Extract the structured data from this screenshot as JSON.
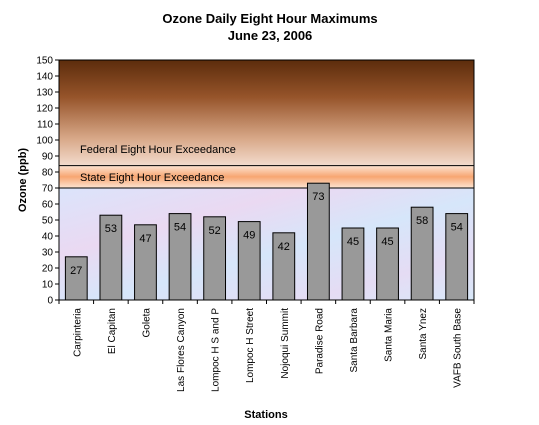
{
  "chart_data": {
    "type": "bar",
    "title": "Ozone Daily Eight Hour Maximums",
    "subtitle": "June 23, 2006",
    "xlabel": "Stations",
    "ylabel": "Ozone  (ppb)",
    "ylim": [
      0,
      150
    ],
    "yticks": [
      0,
      10,
      20,
      30,
      40,
      50,
      60,
      70,
      80,
      90,
      100,
      110,
      120,
      130,
      140,
      150
    ],
    "categories": [
      "Carpinteria",
      "El Capitan",
      "Goleta",
      "Las Flores Canyon",
      "Lompoc H S and P",
      "Lompoc H Street",
      "Nojoqui Summit",
      "Paradise Road",
      "Santa Barbara",
      "Santa Maria",
      "Santa Ynez",
      "VAFB South Base"
    ],
    "values": [
      27,
      53,
      47,
      54,
      52,
      49,
      42,
      73,
      45,
      45,
      58,
      54
    ],
    "data_labels": [
      "27",
      "53",
      "47",
      "54",
      "52",
      "49",
      "42",
      "73",
      "45",
      "45",
      "58",
      "54"
    ],
    "thresholds": [
      {
        "label": "State Eight Hour Exceedance",
        "from": 70,
        "to": 84
      },
      {
        "label": "Federal Eight Hour Exceedance",
        "from": 84,
        "to": 150
      }
    ],
    "bar_color": "#999999",
    "bar_edge_color": "#000000",
    "grid": false,
    "legend": "none"
  }
}
